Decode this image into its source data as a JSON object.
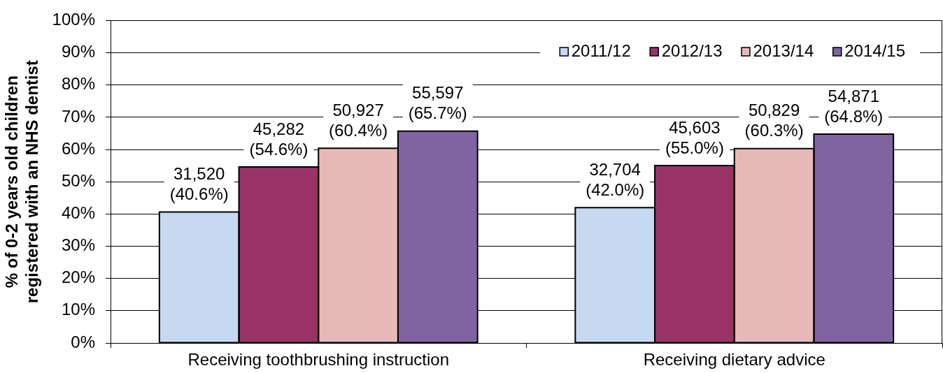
{
  "chart_data": {
    "type": "bar",
    "ylabel": "% of 0-2 years old children\nregistered with an NHS dentist",
    "categories": [
      "Receiving toothbrushing instruction",
      "Receiving dietary advice"
    ],
    "series": [
      {
        "name": "2011/12",
        "color": "#c6d9f0",
        "values": [
          40.6,
          42.0
        ],
        "value_labels": [
          "31,520\n(40.6%)",
          "32,704\n(42.0%)"
        ]
      },
      {
        "name": "2012/13",
        "color": "#993366",
        "values": [
          54.6,
          55.0
        ],
        "value_labels": [
          "45,282\n(54.6%)",
          "45,603\n(55.0%)"
        ]
      },
      {
        "name": "2013/14",
        "color": "#e6b9b8",
        "values": [
          60.4,
          60.3
        ],
        "value_labels": [
          "50,927\n(60.4%)",
          "50,829\n(60.3%)"
        ]
      },
      {
        "name": "2014/15",
        "color": "#8064a2",
        "values": [
          65.7,
          64.8
        ],
        "value_labels": [
          "55,597\n(65.7%)",
          "54,871\n(64.8%)"
        ]
      }
    ],
    "ylim": [
      0,
      100
    ],
    "yticks": [
      {
        "value": 0,
        "label": "0%"
      },
      {
        "value": 10,
        "label": "10%"
      },
      {
        "value": 20,
        "label": "20%"
      },
      {
        "value": 30,
        "label": "30%"
      },
      {
        "value": 40,
        "label": "40%"
      },
      {
        "value": 50,
        "label": "50%"
      },
      {
        "value": 60,
        "label": "60%"
      },
      {
        "value": 70,
        "label": "70%"
      },
      {
        "value": 80,
        "label": "80%"
      },
      {
        "value": 90,
        "label": "90%"
      },
      {
        "value": 100,
        "label": "100%"
      }
    ],
    "grid": "y",
    "legend": "top right"
  }
}
